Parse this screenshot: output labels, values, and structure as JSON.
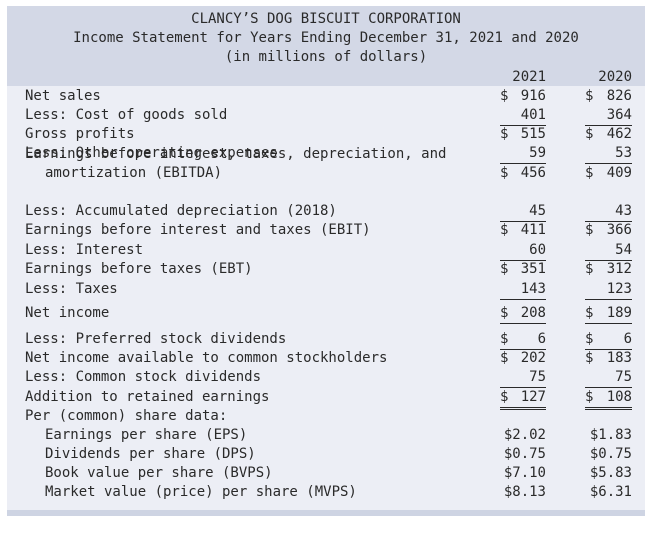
{
  "header": {
    "company": "CLANCY’S DOG BISCUIT CORPORATION",
    "title": "Income Statement for Years Ending December 31, 2021 and 2020",
    "units": "(in millions of dollars)"
  },
  "columns": {
    "y1": "2021",
    "y2": "2020"
  },
  "rows": [
    {
      "label": "Net sales",
      "v1": "916",
      "v2": "826",
      "dollar1": "$",
      "dollar2": "$"
    },
    {
      "label": "Less: Cost of goods sold",
      "v1": "401",
      "v2": "364",
      "dollar1": "",
      "dollar2": ""
    },
    {
      "label": "Gross profits",
      "v1": "515",
      "v2": "462",
      "dollar1": "$",
      "dollar2": "$"
    },
    {
      "label": "Less: Other operating expenses",
      "v1": "59",
      "v2": "53",
      "dollar1": "",
      "dollar2": ""
    },
    {
      "label": "Earnings before interest, taxes, depreciation, and",
      "label2": "amortization (EBITDA)",
      "v1": "456",
      "v2": "409",
      "dollar1": "$",
      "dollar2": "$"
    },
    {
      "label": "Less: Accumulated depreciation (2018)",
      "v1": "45",
      "v2": "43",
      "dollar1": "",
      "dollar2": ""
    },
    {
      "label": "Earnings before interest and taxes (EBIT)",
      "v1": "411",
      "v2": "366",
      "dollar1": "$",
      "dollar2": "$"
    },
    {
      "label": "Less: Interest",
      "v1": "60",
      "v2": "54",
      "dollar1": "",
      "dollar2": ""
    },
    {
      "label": "Earnings before taxes (EBT)",
      "v1": "351",
      "v2": "312",
      "dollar1": "$",
      "dollar2": "$"
    },
    {
      "label": "Less: Taxes",
      "v1": "143",
      "v2": "123",
      "dollar1": "",
      "dollar2": ""
    },
    {
      "label": "Net income",
      "v1": "208",
      "v2": "189",
      "dollar1": "$",
      "dollar2": "$"
    },
    {
      "label": "Less: Preferred stock dividends",
      "v1": "6",
      "v2": "6",
      "dollar1": "$",
      "dollar2": "$"
    },
    {
      "label": "Net income available to common stockholders",
      "v1": "202",
      "v2": "183",
      "dollar1": "$",
      "dollar2": "$"
    },
    {
      "label": "Less: Common stock dividends",
      "v1": "75",
      "v2": "75",
      "dollar1": "",
      "dollar2": ""
    },
    {
      "label": "Addition to retained earnings",
      "v1": "127",
      "v2": "108",
      "dollar1": "$",
      "dollar2": "$"
    }
  ],
  "per_share": {
    "heading": "Per (common) share data:",
    "items": [
      {
        "label": "Earnings per share (EPS)",
        "v1": "$2.02",
        "v2": "$1.83"
      },
      {
        "label": "Dividends per share (DPS)",
        "v1": "$0.75",
        "v2": "$0.75"
      },
      {
        "label": "Book value per share (BVPS)",
        "v1": "$7.10",
        "v2": "$5.83"
      },
      {
        "label": "Market value (price) per share (MVPS)",
        "v1": "$8.13",
        "v2": "$6.31"
      }
    ]
  }
}
